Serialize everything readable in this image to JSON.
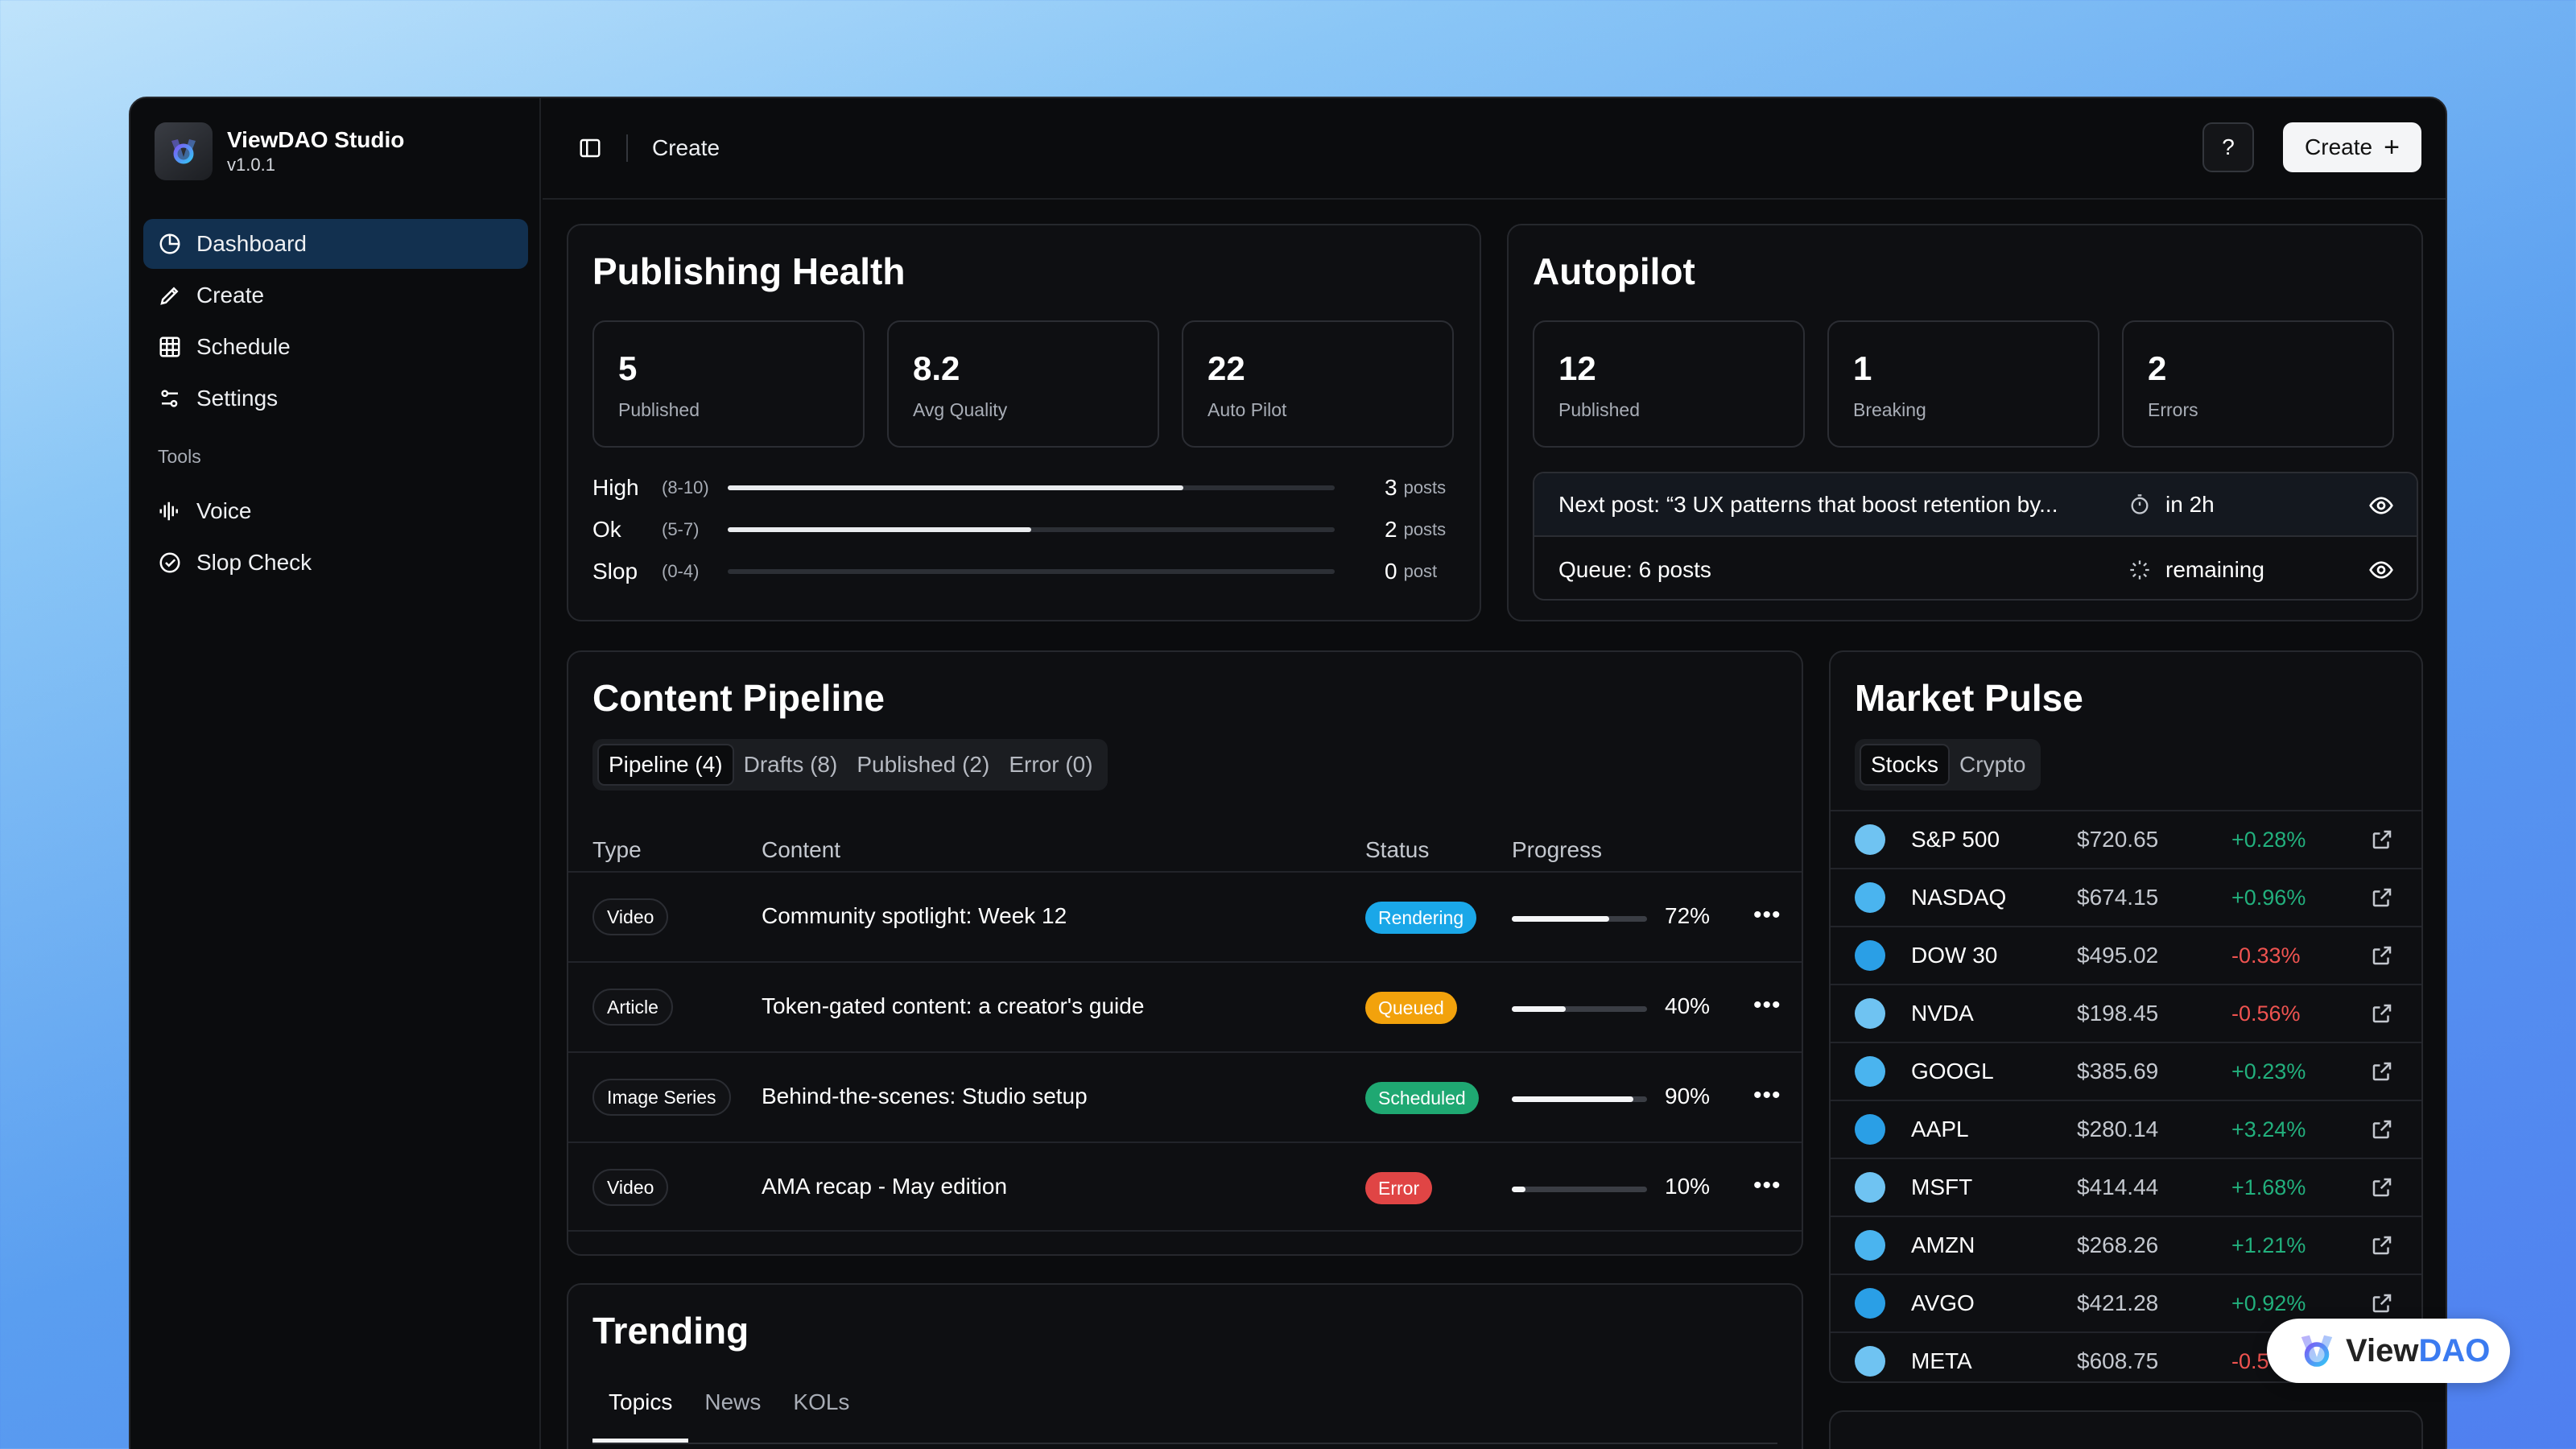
{
  "app": {
    "name": "ViewDAO Studio",
    "version": "v1.0.1"
  },
  "sidebar": {
    "items": [
      {
        "label": "Dashboard",
        "icon": "pie-chart-icon",
        "active": true
      },
      {
        "label": "Create",
        "icon": "pencil-icon"
      },
      {
        "label": "Schedule",
        "icon": "table-grid-icon"
      },
      {
        "label": "Settings",
        "icon": "sliders-icon"
      }
    ],
    "tools_heading": "Tools",
    "tools": [
      {
        "label": "Voice",
        "icon": "audio-wave-icon"
      },
      {
        "label": "Slop Check",
        "icon": "check-circle-icon"
      }
    ]
  },
  "header": {
    "breadcrumb": "Create",
    "help_label": "?",
    "create_label": "Create"
  },
  "publishing_health": {
    "title": "Publishing Health",
    "stats": [
      {
        "value": "5",
        "label": "Published"
      },
      {
        "value": "8.2",
        "label": "Avg Quality"
      },
      {
        "value": "22",
        "label": "Auto Pilot"
      }
    ],
    "quality": [
      {
        "name": "High",
        "range": "(8-10)",
        "fraction": 0.75,
        "count": "3",
        "unit": "posts"
      },
      {
        "name": "Ok",
        "range": "(5-7)",
        "fraction": 0.5,
        "count": "2",
        "unit": "posts"
      },
      {
        "name": "Slop",
        "range": "(0-4)",
        "fraction": 0,
        "count": "0",
        "unit": "post"
      }
    ]
  },
  "autopilot": {
    "title": "Autopilot",
    "stats": [
      {
        "value": "12",
        "label": "Published"
      },
      {
        "value": "1",
        "label": "Breaking"
      },
      {
        "value": "2",
        "label": "Errors"
      }
    ],
    "next_post": "Next post: “3 UX patterns that boost retention by...",
    "next_in": "in 2h",
    "queue": "Queue: 6 posts",
    "queue_status": "remaining"
  },
  "pipeline": {
    "title": "Content Pipeline",
    "tabs": [
      "Pipeline (4)",
      "Drafts (8)",
      "Published (2)",
      "Error (0)"
    ],
    "headers": {
      "type": "Type",
      "content": "Content",
      "status": "Status",
      "progress": "Progress"
    },
    "rows": [
      {
        "type": "Video",
        "content": "Community spotlight: Week 12",
        "status": "Rendering",
        "status_color": "#1aa7e8",
        "progress": 0.72,
        "progress_label": "72%"
      },
      {
        "type": "Article",
        "content": "Token-gated content: a creator's guide",
        "status": "Queued",
        "status_color": "#f2a20c",
        "progress": 0.4,
        "progress_label": "40%"
      },
      {
        "type": "Image Series",
        "content": "Behind-the-scenes: Studio setup",
        "status": "Scheduled",
        "status_color": "#1fa872",
        "progress": 0.9,
        "progress_label": "90%"
      },
      {
        "type": "Video",
        "content": "AMA recap - May edition",
        "status": "Error",
        "status_color": "#e04545",
        "progress": 0.1,
        "progress_label": "10%"
      }
    ]
  },
  "market": {
    "title": "Market Pulse",
    "tabs": [
      "Stocks",
      "Crypto"
    ],
    "rows": [
      {
        "symbol": "S&P 500",
        "price": "$720.65",
        "change": "+0.28%",
        "dir": "pos",
        "color": "#6fc3f2"
      },
      {
        "symbol": "NASDAQ",
        "price": "$674.15",
        "change": "+0.96%",
        "dir": "pos",
        "color": "#4ab4ef"
      },
      {
        "symbol": "DOW 30",
        "price": "$495.02",
        "change": "-0.33%",
        "dir": "neg",
        "color": "#2a9fe6"
      },
      {
        "symbol": "NVDA",
        "price": "$198.45",
        "change": "-0.56%",
        "dir": "neg",
        "color": "#6fc3f2"
      },
      {
        "symbol": "GOOGL",
        "price": "$385.69",
        "change": "+0.23%",
        "dir": "pos",
        "color": "#4ab4ef"
      },
      {
        "symbol": "AAPL",
        "price": "$280.14",
        "change": "+3.24%",
        "dir": "pos",
        "color": "#2a9fe6"
      },
      {
        "symbol": "MSFT",
        "price": "$414.44",
        "change": "+1.68%",
        "dir": "pos",
        "color": "#6fc3f2"
      },
      {
        "symbol": "AMZN",
        "price": "$268.26",
        "change": "+1.21%",
        "dir": "pos",
        "color": "#4ab4ef"
      },
      {
        "symbol": "AVGO",
        "price": "$421.28",
        "change": "+0.92%",
        "dir": "pos",
        "color": "#2a9fe6"
      },
      {
        "symbol": "META",
        "price": "$608.75",
        "change": "-0.5",
        "dir": "neg",
        "color": "#6fc3f2"
      }
    ]
  },
  "trending": {
    "title": "Trending",
    "tabs": [
      "Topics",
      "News",
      "KOLs"
    ]
  },
  "watermark": {
    "part1": "View",
    "part2": "DAO"
  }
}
